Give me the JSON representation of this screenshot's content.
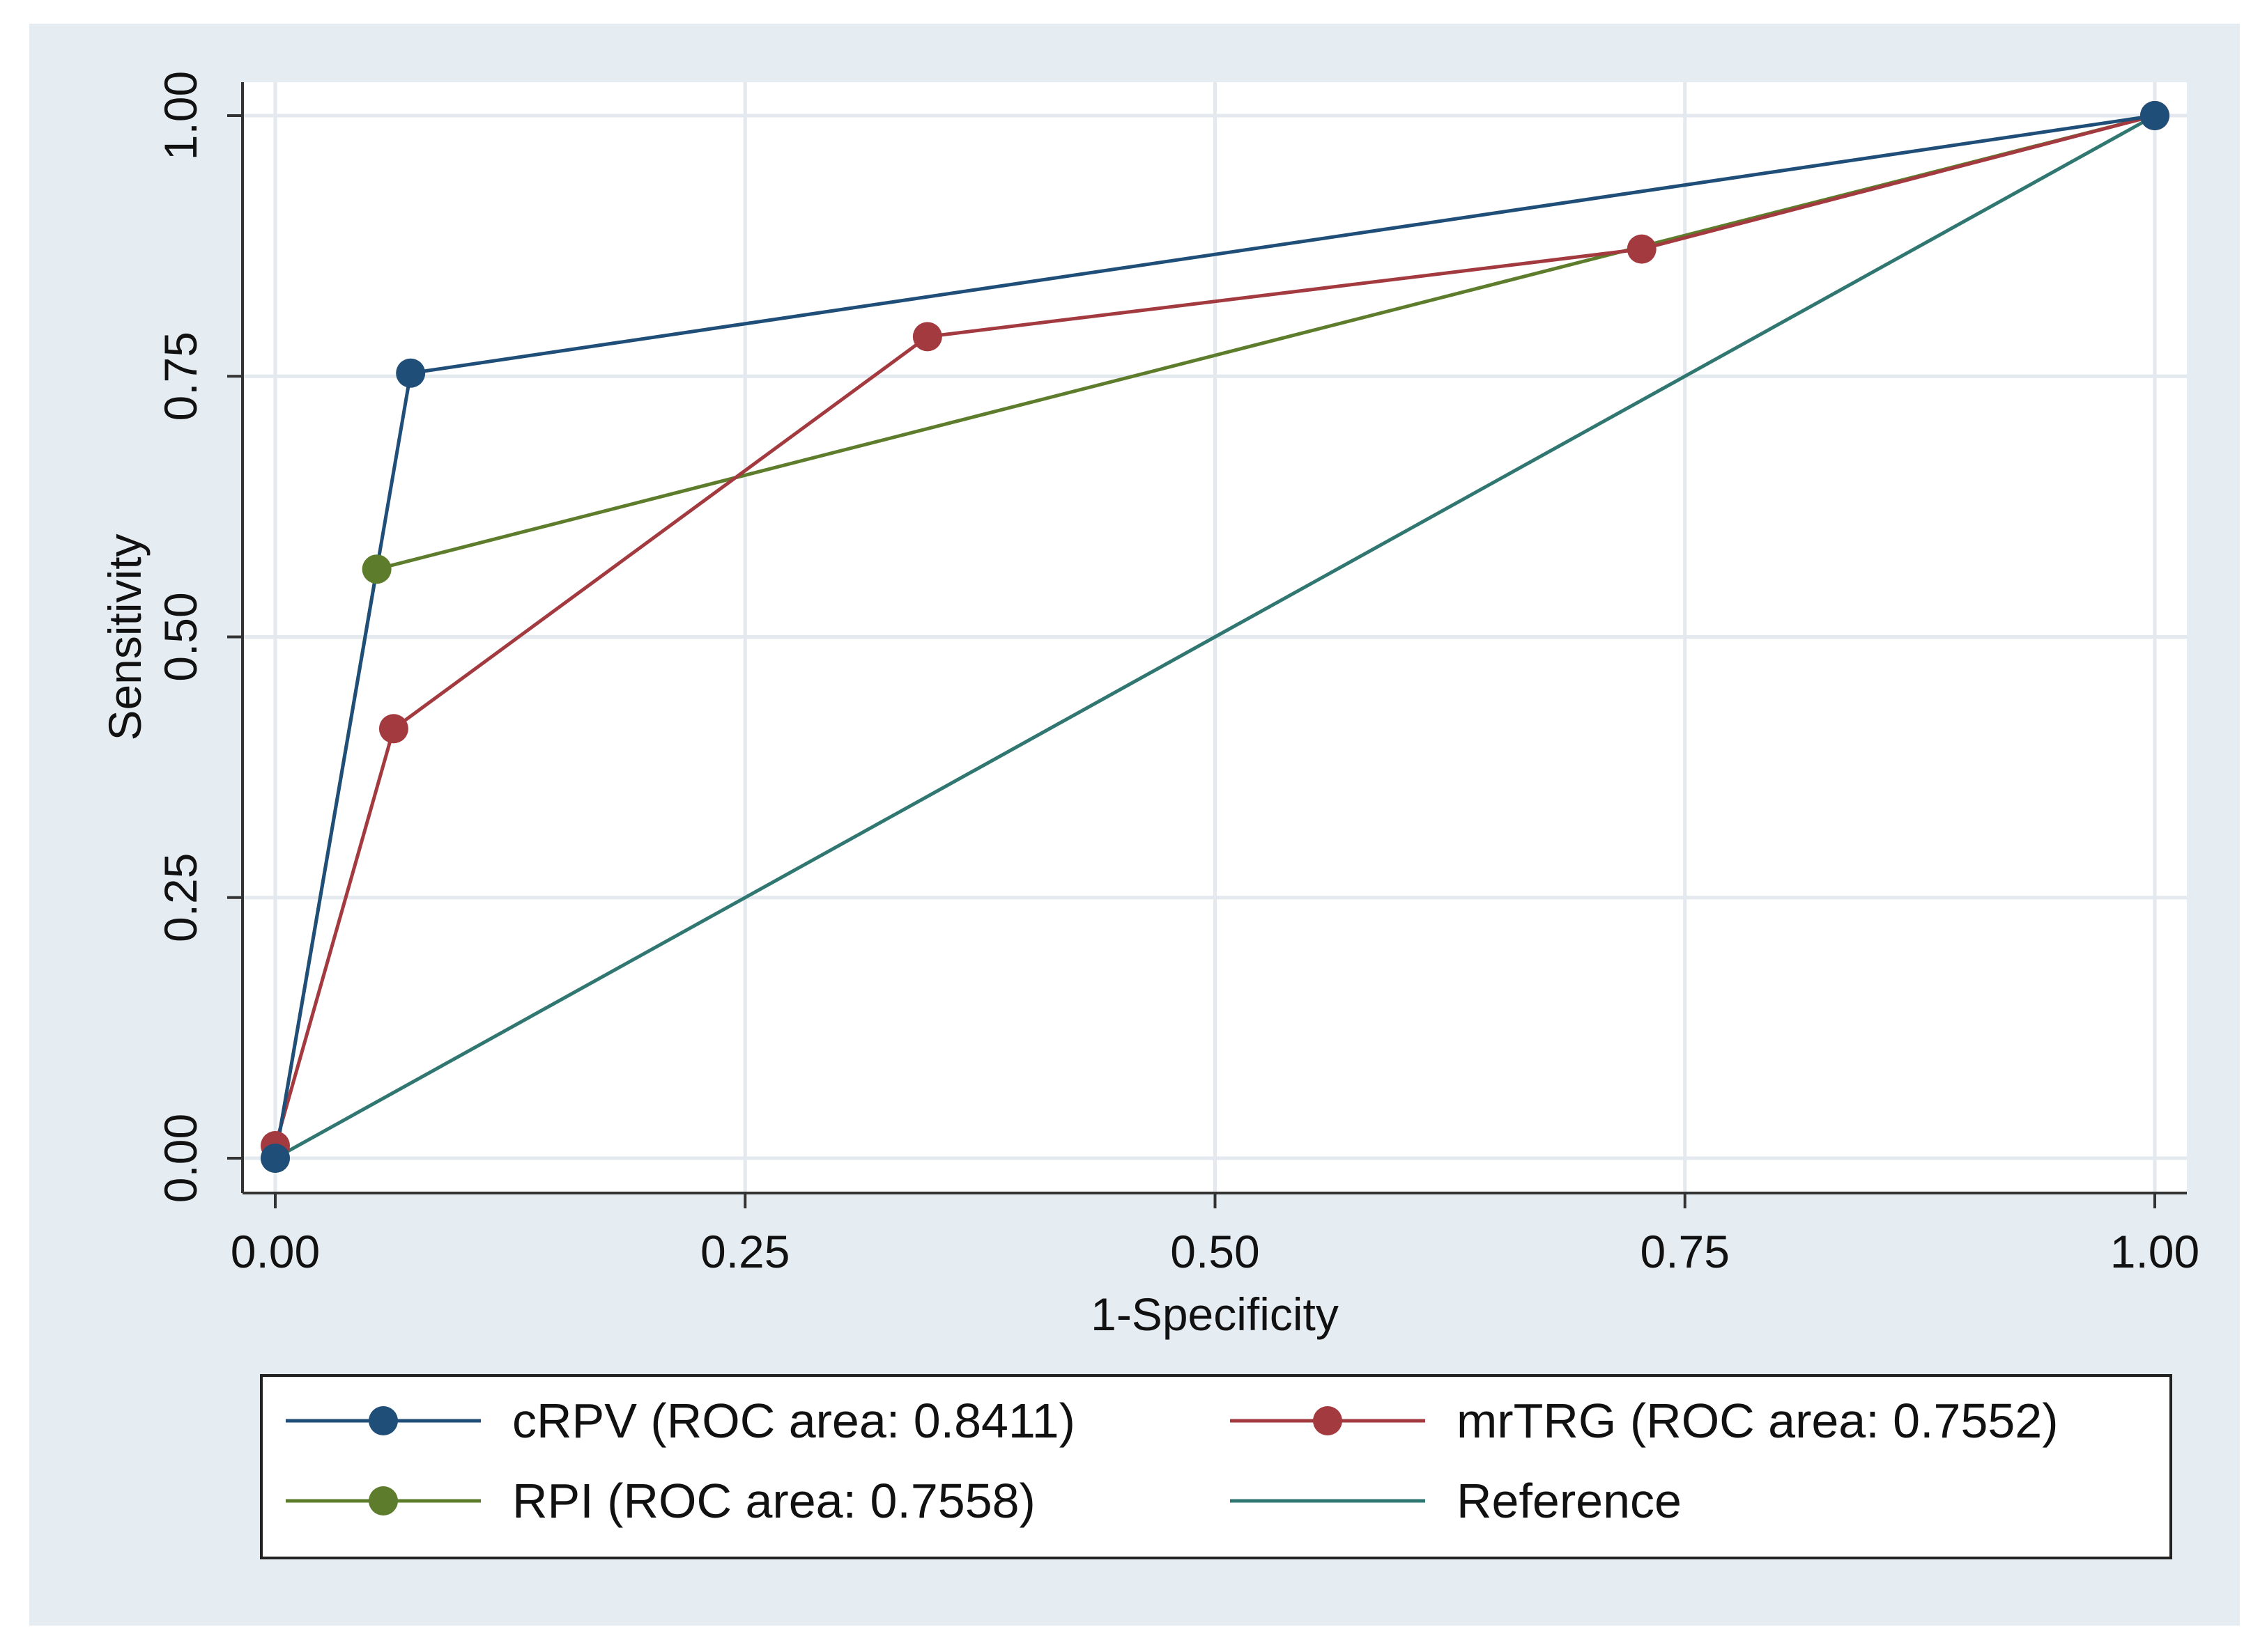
{
  "chart_data": {
    "type": "line",
    "title": "",
    "xlabel": "1-Specificity",
    "ylabel": "Sensitivity",
    "xlim": [
      0,
      1
    ],
    "ylim": [
      0,
      1
    ],
    "grid": true,
    "x_ticks": [
      "0.00",
      "0.25",
      "0.50",
      "0.75",
      "1.00"
    ],
    "y_ticks": [
      "0.00",
      "0.25",
      "0.50",
      "0.75",
      "1.00"
    ],
    "legend_position": "bottom",
    "series": [
      {
        "id": "crpv",
        "name": "cRPV (ROC area: 0.8411)",
        "color": "#1f4e79",
        "markers": true,
        "x": [
          0.0,
          0.072,
          1.0
        ],
        "y": [
          0.0,
          0.753,
          1.0
        ]
      },
      {
        "id": "mrtrg",
        "name": "mrTRG (ROC area: 0.7552)",
        "color": "#a33a3f",
        "markers": true,
        "x": [
          0.0,
          0.063,
          0.347,
          0.727,
          1.0
        ],
        "y": [
          0.012,
          0.412,
          0.788,
          0.872,
          1.0
        ]
      },
      {
        "id": "rpi",
        "name": "RPI (ROC area: 0.7558)",
        "color": "#5e7d2c",
        "markers": true,
        "x": [
          0.0,
          0.054,
          1.0
        ],
        "y": [
          0.0,
          0.565,
          1.0
        ]
      },
      {
        "id": "reference",
        "name": "Reference",
        "color": "#2f7770",
        "markers": false,
        "x": [
          0.0,
          1.0
        ],
        "y": [
          0.0,
          1.0
        ]
      }
    ]
  },
  "colors": {
    "outer_background": "#e6edf2",
    "plot_background": "#ffffff",
    "grid": "#e3e9ee",
    "axis": "#333333"
  }
}
